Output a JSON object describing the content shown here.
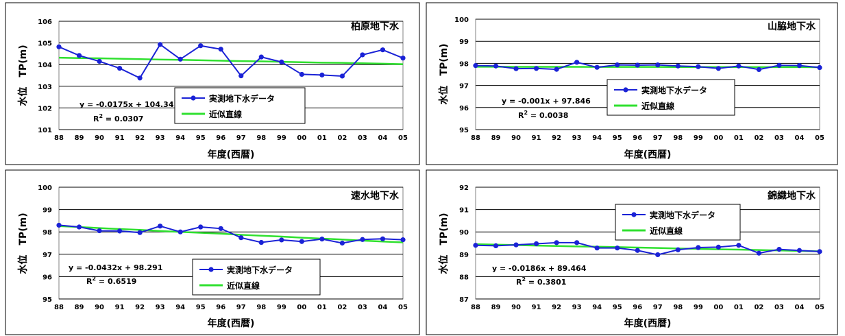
{
  "colors": {
    "measured": "#1a22d6",
    "trend": "#2fe02f",
    "grid": "#000000",
    "frame": "#000000"
  },
  "chart_data": [
    {
      "type": "line",
      "title": "柏原地下水",
      "xlabel": "年度(西暦)",
      "ylabel": "水位　TP(m)",
      "categories": [
        "88",
        "89",
        "90",
        "91",
        "92",
        "93",
        "94",
        "95",
        "96",
        "97",
        "98",
        "99",
        "00",
        "01",
        "02",
        "03",
        "04",
        "05"
      ],
      "ylim": [
        101,
        106
      ],
      "yticks": [
        101,
        102,
        103,
        104,
        105,
        106
      ],
      "grid": true,
      "series": [
        {
          "name": "実測地下水データ",
          "values": [
            104.82,
            104.42,
            104.15,
            103.83,
            103.38,
            104.93,
            104.25,
            104.87,
            104.71,
            103.48,
            104.35,
            104.12,
            103.55,
            103.52,
            103.47,
            104.45,
            104.68,
            104.3
          ]
        },
        {
          "name": "近似直線",
          "values": [
            104.32,
            104.3,
            104.29,
            104.27,
            104.25,
            104.23,
            104.22,
            104.2,
            104.18,
            104.16,
            104.15,
            104.13,
            104.11,
            104.09,
            104.08,
            104.06,
            104.04,
            104.02
          ]
        }
      ],
      "legend": "center",
      "equation": "y = -0.0175x + 104.34",
      "r2_label": "R",
      "r2_sup": "2",
      "r2_value": " = 0.0307"
    },
    {
      "type": "line",
      "title": "山脇地下水",
      "xlabel": "年度(西暦)",
      "ylabel": "水位　TP(m)",
      "categories": [
        "88",
        "89",
        "90",
        "91",
        "92",
        "93",
        "94",
        "95",
        "96",
        "97",
        "98",
        "99",
        "00",
        "01",
        "02",
        "03",
        "04",
        "05"
      ],
      "ylim": [
        95,
        100
      ],
      "yticks": [
        95,
        96,
        97,
        98,
        99,
        100
      ],
      "grid": true,
      "series": [
        {
          "name": "実測地下水データ",
          "values": [
            97.9,
            97.88,
            97.76,
            97.77,
            97.73,
            98.05,
            97.82,
            97.93,
            97.92,
            97.93,
            97.88,
            97.85,
            97.77,
            97.88,
            97.72,
            97.91,
            97.9,
            97.81
          ]
        },
        {
          "name": "近似直線",
          "values": [
            97.845,
            97.844,
            97.843,
            97.842,
            97.841,
            97.84,
            97.839,
            97.838,
            97.837,
            97.836,
            97.835,
            97.834,
            97.833,
            97.832,
            97.831,
            97.83,
            97.829,
            97.828
          ]
        }
      ],
      "legend": "center-right",
      "equation": "y = -0.001x + 97.846",
      "r2_label": "R",
      "r2_sup": "2",
      "r2_value": " = 0.0038"
    },
    {
      "type": "line",
      "title": "速水地下水",
      "xlabel": "年度(西暦)",
      "ylabel": "水位　TP(m)",
      "categories": [
        "88",
        "89",
        "90",
        "91",
        "92",
        "93",
        "94",
        "95",
        "96",
        "97",
        "98",
        "99",
        "00",
        "01",
        "02",
        "03",
        "04",
        "05"
      ],
      "ylim": [
        95,
        100
      ],
      "yticks": [
        95,
        96,
        97,
        98,
        99,
        100
      ],
      "grid": true,
      "series": [
        {
          "name": "実測地下水データ",
          "values": [
            98.3,
            98.22,
            98.05,
            98.04,
            97.97,
            98.26,
            98.0,
            98.22,
            98.15,
            97.74,
            97.53,
            97.64,
            97.57,
            97.68,
            97.5,
            97.66,
            97.69,
            97.65
          ]
        },
        {
          "name": "近似直線",
          "values": [
            98.26,
            98.22,
            98.17,
            98.13,
            98.09,
            98.04,
            98.0,
            97.96,
            97.92,
            97.87,
            97.83,
            97.79,
            97.74,
            97.7,
            97.66,
            97.61,
            97.57,
            97.53
          ]
        }
      ],
      "legend": "bottom-center",
      "equation": "y = -0.0432x + 98.291",
      "r2_label": "R",
      "r2_sup": "2",
      "r2_value": " = 0.6519"
    },
    {
      "type": "line",
      "title": "錦織地下水",
      "xlabel": "年度(西暦)",
      "ylabel": "水位　TP(m)",
      "categories": [
        "88",
        "89",
        "90",
        "91",
        "92",
        "93",
        "94",
        "95",
        "96",
        "97",
        "98",
        "99",
        "00",
        "01",
        "02",
        "03",
        "04",
        "05"
      ],
      "ylim": [
        87,
        92
      ],
      "yticks": [
        87,
        88,
        89,
        90,
        91,
        92
      ],
      "grid": true,
      "series": [
        {
          "name": "実測地下水データ",
          "values": [
            89.4,
            89.38,
            89.42,
            89.47,
            89.52,
            89.52,
            89.28,
            89.28,
            89.17,
            88.98,
            89.2,
            89.3,
            89.32,
            89.4,
            89.05,
            89.22,
            89.17,
            89.12
          ]
        },
        {
          "name": "近似直線",
          "values": [
            89.45,
            89.43,
            89.41,
            89.39,
            89.37,
            89.35,
            89.34,
            89.32,
            89.3,
            89.28,
            89.26,
            89.24,
            89.22,
            89.21,
            89.19,
            89.17,
            89.15,
            89.13
          ]
        }
      ],
      "legend": "top-center",
      "equation": "y = -0.0186x + 89.464",
      "r2_label": "R",
      "r2_sup": "2",
      "r2_value": " = 0.3801"
    }
  ]
}
